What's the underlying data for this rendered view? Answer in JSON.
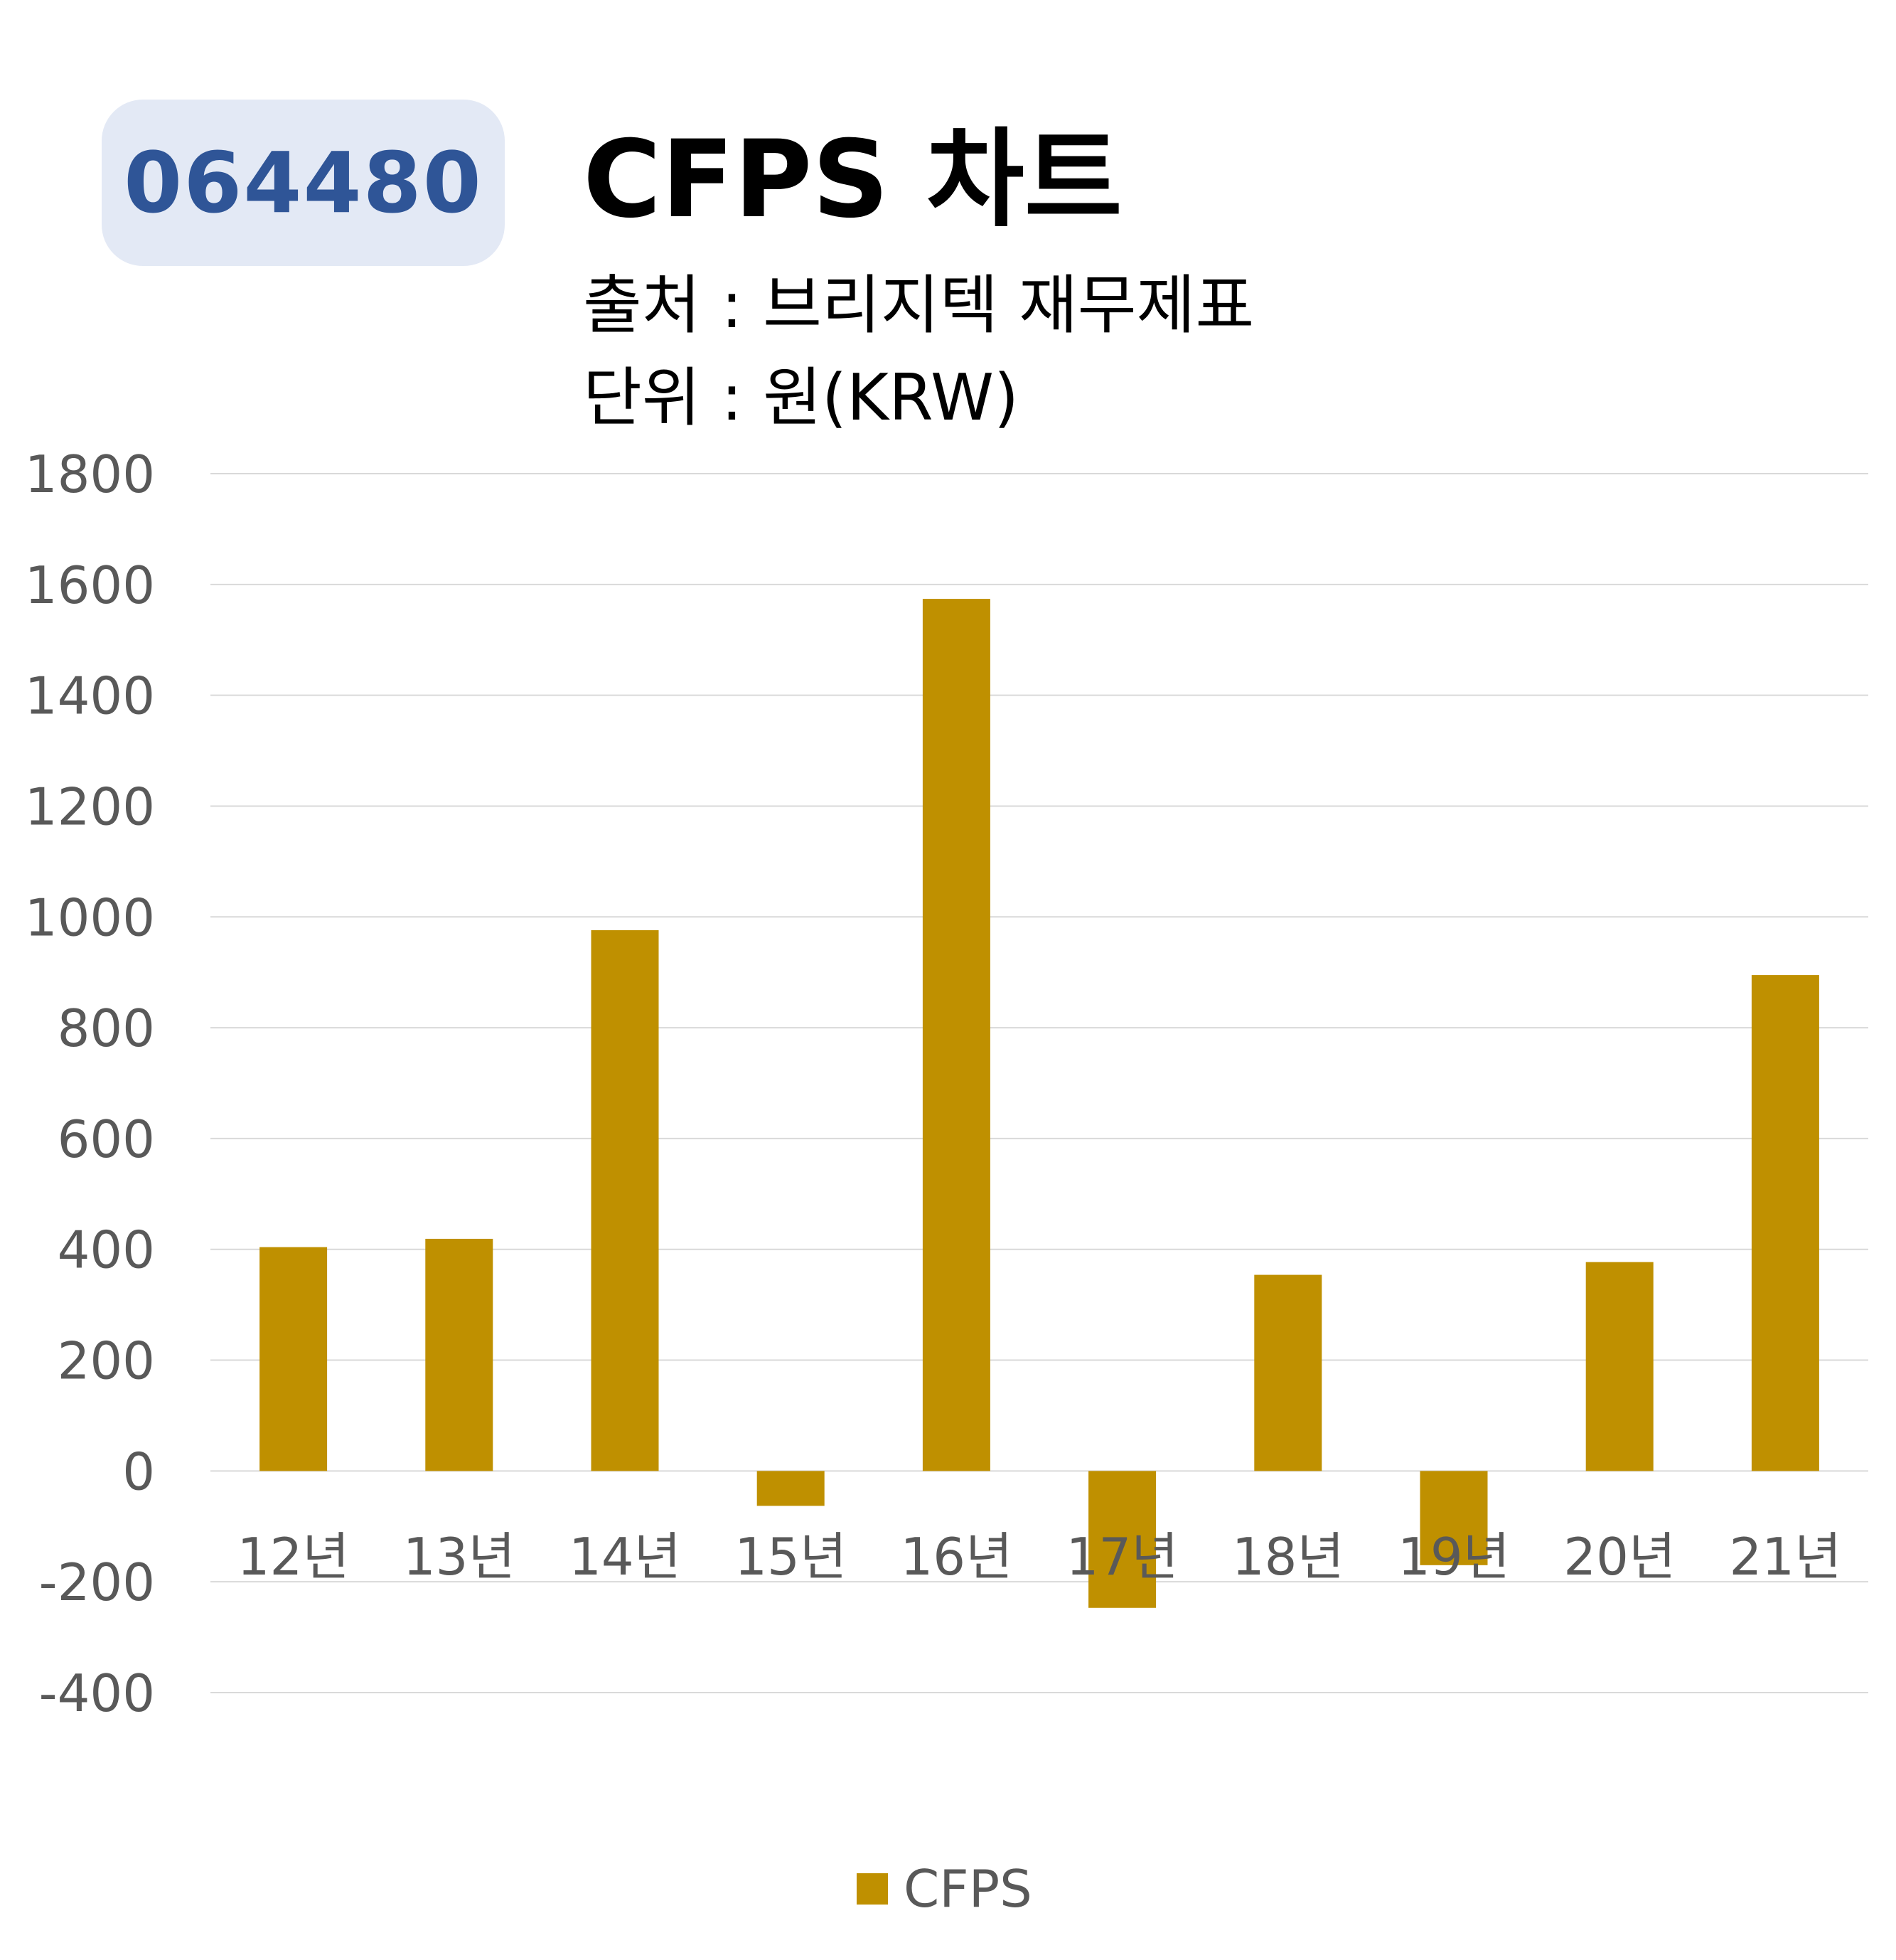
{
  "ticker": "064480",
  "title": "CFPS 차트",
  "source": "출처 : 브리지텍 재무제표",
  "unit": "단위 : 원(KRW)",
  "colors": {
    "bar": "#bf9000",
    "badge_bg": "#e3e9f5",
    "badge_text": "#2f5597",
    "grid": "#d9d9d9",
    "axis_text": "#595959"
  },
  "chart_data": {
    "type": "bar",
    "categories": [
      "12년",
      "13년",
      "14년",
      "15년",
      "16년",
      "17년",
      "18년",
      "19년",
      "20년",
      "21년"
    ],
    "series": [
      {
        "name": "CFPS",
        "values": [
          404,
          419,
          976,
          -63,
          1574,
          -247,
          354,
          -170,
          377,
          895
        ]
      }
    ],
    "title": "CFPS 차트",
    "xlabel": "",
    "ylabel": "",
    "ylim": [
      -400,
      1800
    ],
    "yticks": [
      1800,
      1600,
      1400,
      1200,
      1000,
      800,
      600,
      400,
      200,
      0,
      -200,
      -400
    ],
    "grid": true,
    "legend": "bottom-center"
  }
}
